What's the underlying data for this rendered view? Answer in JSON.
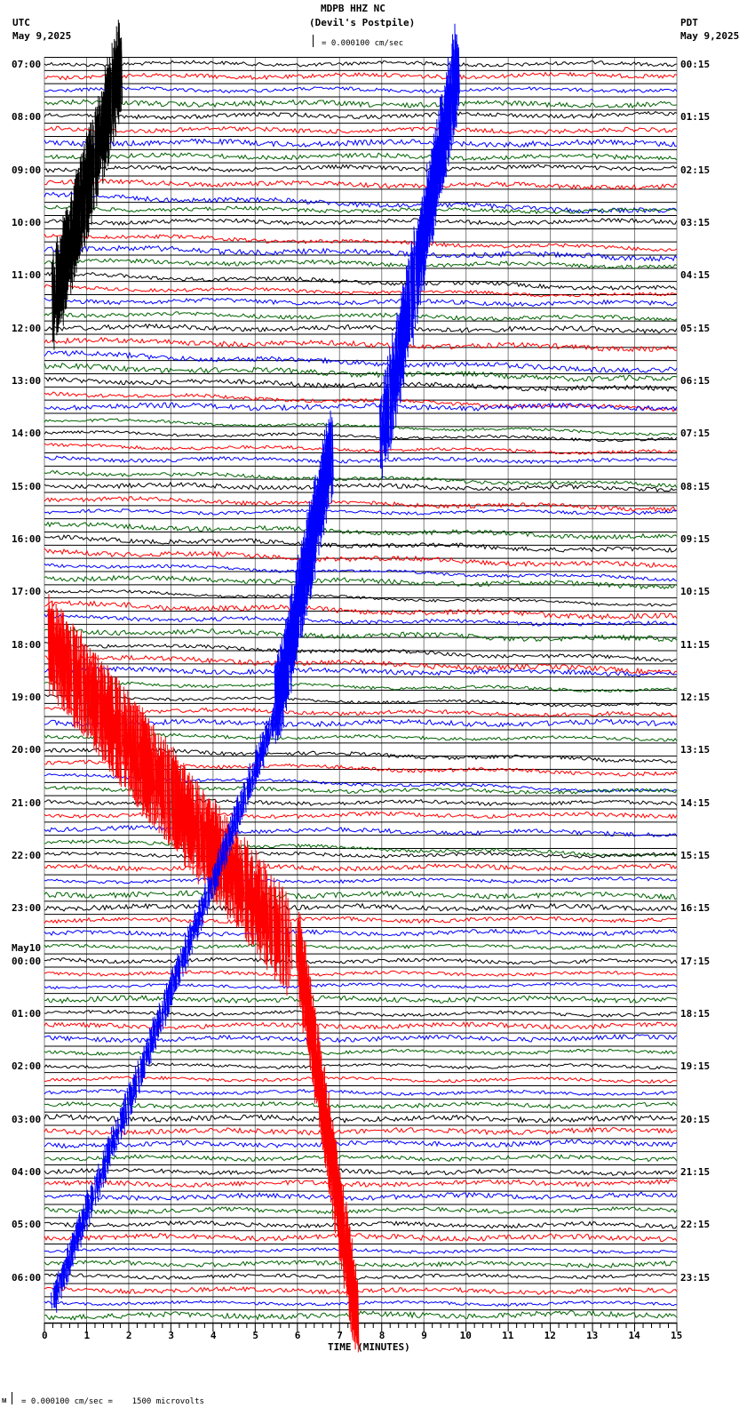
{
  "header": {
    "station": "MDPB HHZ NC",
    "location": "(Devil's Postpile)",
    "scale_text": "= 0.000100 cm/sec",
    "left_tz": "UTC",
    "left_date": "May 9,2025",
    "right_tz": "PDT",
    "right_date": "May 9,2025"
  },
  "footer": {
    "xlabel": "TIME (MINUTES)",
    "scale_note": "= 0.000100 cm/sec =    1500 microvolts"
  },
  "day_marker": "May10",
  "colors": {
    "black": "#000000",
    "red": "#ff0000",
    "blue": "#0000ff",
    "green": "#006400",
    "grid_v": "#808080",
    "grid_h": "#000000"
  },
  "chart_data": {
    "type": "line",
    "title": "MDPB HHZ NC (Devil's Postpile)",
    "subtitle": "Helicorder seismogram, 24 hours, 15-minute lines",
    "xlabel": "TIME (MINUTES)",
    "ylabel": "",
    "x_ticks": [
      0,
      1,
      2,
      3,
      4,
      5,
      6,
      7,
      8,
      9,
      10,
      11,
      12,
      13,
      14,
      15
    ],
    "xlim": [
      0,
      15
    ],
    "left_labels": [
      "07:00",
      "08:00",
      "09:00",
      "10:00",
      "11:00",
      "12:00",
      "13:00",
      "14:00",
      "15:00",
      "16:00",
      "17:00",
      "18:00",
      "19:00",
      "20:00",
      "21:00",
      "22:00",
      "23:00",
      "00:00",
      "01:00",
      "02:00",
      "03:00",
      "04:00",
      "05:00",
      "06:00"
    ],
    "right_labels": [
      "00:15",
      "01:15",
      "02:15",
      "03:15",
      "04:15",
      "05:15",
      "06:15",
      "07:15",
      "08:15",
      "09:15",
      "10:15",
      "11:15",
      "12:15",
      "13:15",
      "14:15",
      "15:15",
      "16:15",
      "17:15",
      "18:15",
      "19:15",
      "20:15",
      "21:15",
      "22:15",
      "23:15"
    ],
    "trace_colors_cycle": [
      "black",
      "red",
      "blue",
      "green"
    ],
    "rows": 96,
    "scale": "0.000100 cm/sec = 1500 microvolts",
    "grid": true,
    "notable_events": [
      {
        "time_utc": "07:00-11:30",
        "x_min": "0.5-2",
        "color": "black",
        "description": "large amplitude burst"
      },
      {
        "time_utc": "07:00-14:00",
        "x_min": "7.5-10",
        "color": "blue",
        "description": "large amplitude burst"
      },
      {
        "time_utc": "14:30-18:00",
        "x_min": "5.5-7",
        "color": "blue",
        "description": "large amplitude burst"
      },
      {
        "time_utc": "17:30-23:00",
        "x_min": "0-6",
        "color": "red",
        "description": "large amplitude burst"
      },
      {
        "time_utc": "18:00-06:30",
        "x_min": "0-6",
        "color": "blue",
        "description": "drifting burst"
      },
      {
        "time_utc": "23:00-06:45",
        "x_min": "6-7.5",
        "color": "red",
        "description": "large amplitude burst"
      }
    ]
  }
}
